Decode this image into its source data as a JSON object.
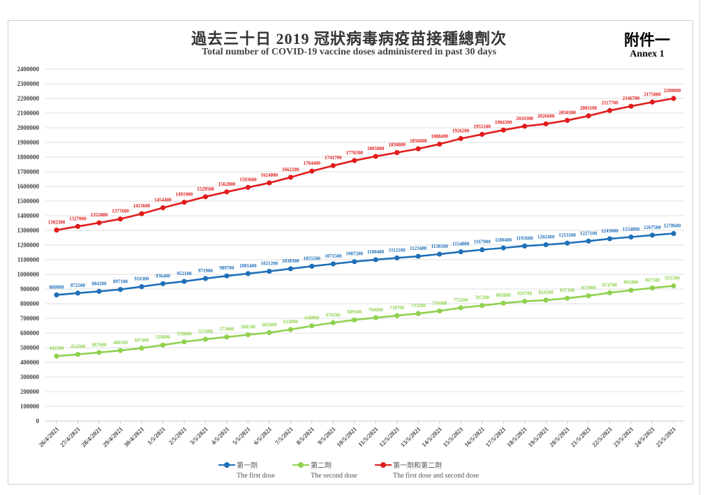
{
  "header": {
    "title_zh": "過去三十日 2019 冠狀病毒病疫苗接種總劑次",
    "title_en": "Total number of COVID-19 vaccine doses administered in past 30 days",
    "annex_zh": "附件一",
    "annex_en": "Annex 1"
  },
  "chart_data": {
    "type": "line",
    "ylim": [
      0,
      2400000
    ],
    "ytick_step": 100000,
    "grid": true,
    "legend_position": "bottom",
    "yticks": [
      "0",
      "100000",
      "200000",
      "300000",
      "400000",
      "500000",
      "600000",
      "700000",
      "800000",
      "900000",
      "1000000",
      "1100000",
      "1200000",
      "1300000",
      "1400000",
      "1500000",
      "1600000",
      "1700000",
      "1800000",
      "1900000",
      "2000000",
      "2100000",
      "2200000",
      "2300000",
      "2400000"
    ],
    "categories": [
      "26/4/2021",
      "27/4/2021",
      "28/4/2021",
      "29/4/2021",
      "30/4/2021",
      "1/5/2021",
      "2/5/2021",
      "3/5/2021",
      "4/5/2021",
      "5/5/2021",
      "6/5/2021",
      "7/5/2021",
      "8/5/2021",
      "9/5/2021",
      "10/5/2021",
      "11/5/2021",
      "12/5/2021",
      "13/5/2021",
      "14/5/2021",
      "15/5/2021",
      "16/5/2021",
      "17/5/2021",
      "18/5/2021",
      "19/5/2021",
      "20/5/2021",
      "21/5/2021",
      "22/5/2021",
      "23/5/2021",
      "24/5/2021",
      "25/5/2021"
    ],
    "series": [
      {
        "name": "第一劑",
        "name_en": "The first dose",
        "color": "#1f6fb8",
        "values": [
          860000,
          872500,
          884200,
          897100,
          916300,
          936400,
          952100,
          971900,
          989700,
          1005400,
          1021200,
          1038300,
          1055500,
          1071500,
          1087200,
          1100400,
          1112100,
          1123400,
          1138100,
          1154000,
          1167900,
          1180400,
          1193600,
          1202400,
          1213100,
          1227100,
          1243000,
          1254800,
          1267500,
          1278600
        ]
      },
      {
        "name": "第二劑",
        "name_en": "The second dose",
        "color": "#8fd14f",
        "values": [
          442300,
          454500,
          467600,
          480500,
          497400,
          518000,
          539800,
          557600,
          573000,
          588100,
          602800,
          623800,
          648900,
          670200,
          689300,
          704600,
          718700,
          733200,
          750400,
          772200,
          787200,
          803800,
          816700,
          824200,
          837100,
          853900,
          874700,
          891800,
          907500,
          921500
        ]
      },
      {
        "name": "第一劑和第二劑",
        "name_en": "The first dose and second dose",
        "color": "#e01c1c",
        "values": [
          1302300,
          1327000,
          1351800,
          1377600,
          1413600,
          1454400,
          1491900,
          1529500,
          1562800,
          1593600,
          1624000,
          1662100,
          1704400,
          1741700,
          1776500,
          1805000,
          1830800,
          1856600,
          1888400,
          1926200,
          1955100,
          1984300,
          2010300,
          2026600,
          2050300,
          2081100,
          2117700,
          2146700,
          2175000,
          2200000
        ]
      }
    ]
  }
}
